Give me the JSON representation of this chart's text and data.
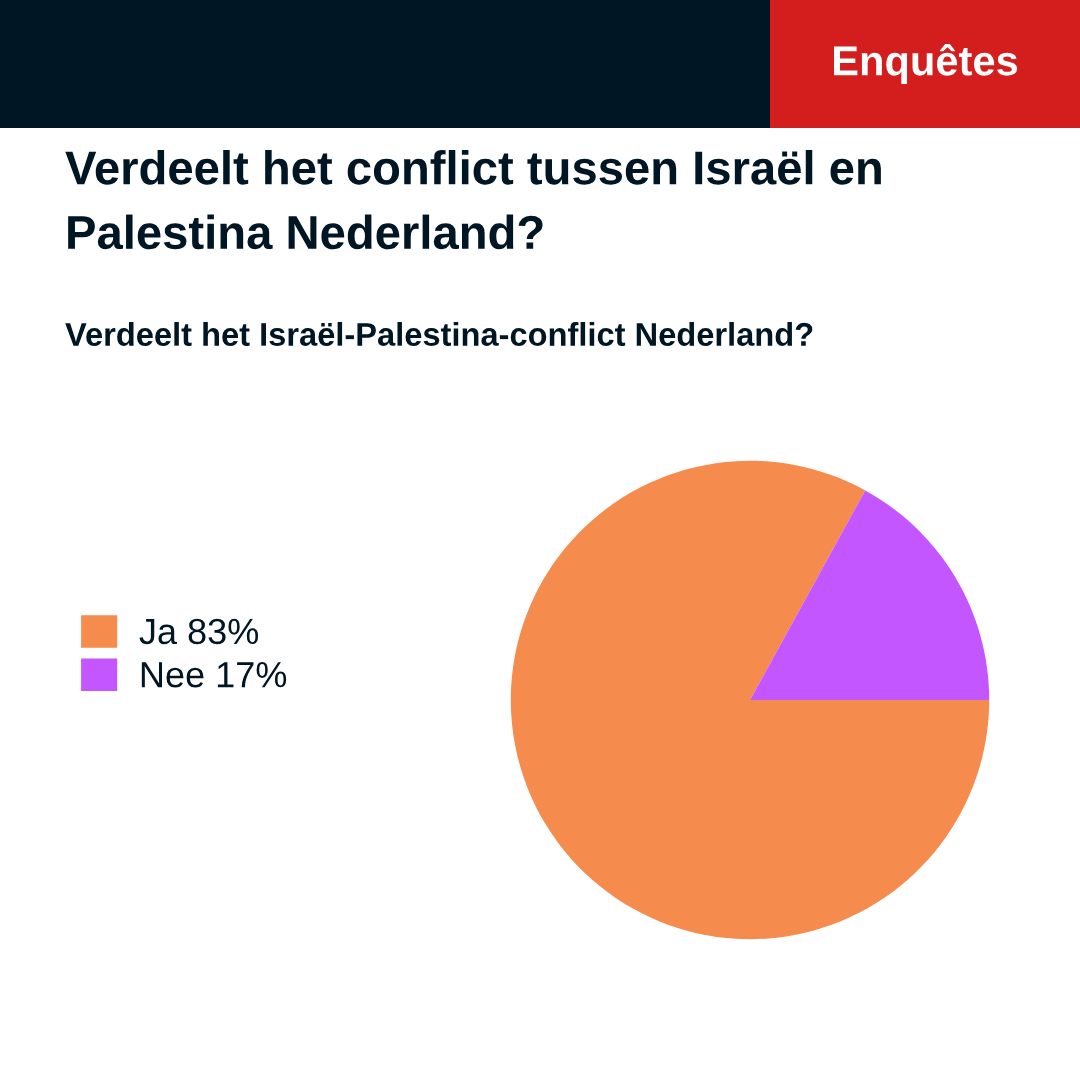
{
  "chart_data": {
    "type": "pie",
    "title": "Verdeelt het conflict tussen Israël en Palestina Nederland?",
    "subtitle": "Verdeelt het Israël-Palestina-conflict Nederland?",
    "annotations": [
      "Enquêtes"
    ],
    "categories": [
      "Ja",
      "Nee"
    ],
    "values": [
      83,
      17
    ],
    "value_labels": [
      "83%",
      "17%"
    ],
    "colors": [
      "#f58b4c",
      "#c456ff"
    ],
    "legend": "left"
  }
}
